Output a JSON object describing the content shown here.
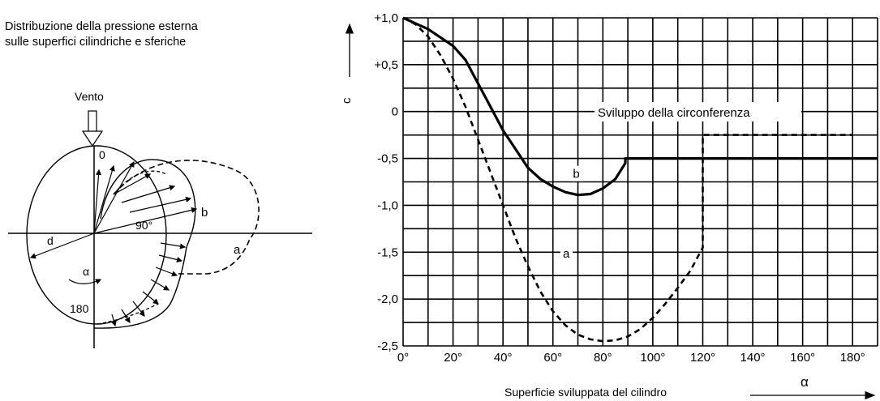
{
  "caption": {
    "line1": "Distribuzione della pressione esterna",
    "line2": "sulle superfici cilindriche e sferiche"
  },
  "diagram": {
    "wind_label": "Vento",
    "label_0": "0",
    "label_90": "90°",
    "label_180": "180",
    "label_d": "d",
    "label_alpha": "α",
    "label_a": "a",
    "label_b": "b"
  },
  "chart_data": {
    "type": "line",
    "ylabel": "c",
    "xlabel": "Superficie sviluppata del cilindro",
    "xlabel_symbol": "α",
    "xlim": [
      0,
      190
    ],
    "ylim": [
      -2.5,
      1.0
    ],
    "x_ticks": [
      0,
      20,
      40,
      60,
      80,
      100,
      120,
      140,
      160,
      180
    ],
    "x_tick_labels": [
      "0°",
      "20°",
      "40°",
      "60°",
      "80°",
      "100°",
      "120°",
      "140°",
      "160°",
      "180°"
    ],
    "y_ticks": [
      1.0,
      0.5,
      0,
      -0.5,
      -1.0,
      -1.5,
      -2.0,
      -2.5
    ],
    "y_tick_labels": [
      "+1,0",
      "+0,5",
      "0",
      "-0,5",
      "-1,0",
      "-1,5",
      "-2,0",
      "-2,5"
    ],
    "grid": true,
    "annotation": "Sviluppo della circonferenza",
    "series": [
      {
        "name": "b",
        "style": "solid",
        "points": [
          [
            0,
            1.0
          ],
          [
            10,
            0.88
          ],
          [
            20,
            0.7
          ],
          [
            25,
            0.55
          ],
          [
            30,
            0.3
          ],
          [
            35,
            0.05
          ],
          [
            40,
            -0.2
          ],
          [
            45,
            -0.4
          ],
          [
            50,
            -0.6
          ],
          [
            55,
            -0.72
          ],
          [
            60,
            -0.8
          ],
          [
            65,
            -0.86
          ],
          [
            70,
            -0.89
          ],
          [
            75,
            -0.88
          ],
          [
            80,
            -0.82
          ],
          [
            85,
            -0.72
          ],
          [
            89,
            -0.55
          ],
          [
            89,
            -0.5
          ],
          [
            190,
            -0.5
          ]
        ]
      },
      {
        "name": "a",
        "style": "dashed",
        "points": [
          [
            0,
            1.0
          ],
          [
            5,
            0.93
          ],
          [
            10,
            0.8
          ],
          [
            15,
            0.6
          ],
          [
            20,
            0.35
          ],
          [
            25,
            0.05
          ],
          [
            30,
            -0.3
          ],
          [
            35,
            -0.65
          ],
          [
            40,
            -1.0
          ],
          [
            45,
            -1.35
          ],
          [
            50,
            -1.65
          ],
          [
            55,
            -1.92
          ],
          [
            60,
            -2.13
          ],
          [
            65,
            -2.28
          ],
          [
            70,
            -2.38
          ],
          [
            75,
            -2.43
          ],
          [
            80,
            -2.45
          ],
          [
            85,
            -2.44
          ],
          [
            90,
            -2.4
          ],
          [
            95,
            -2.32
          ],
          [
            100,
            -2.2
          ],
          [
            105,
            -2.05
          ],
          [
            110,
            -1.88
          ],
          [
            115,
            -1.7
          ],
          [
            118,
            -1.55
          ],
          [
            120,
            -1.45
          ],
          [
            120,
            -0.25
          ],
          [
            180,
            -0.25
          ]
        ]
      }
    ],
    "series_label_positions": {
      "b": [
        68,
        -0.7
      ],
      "a": [
        64,
        -1.55
      ]
    }
  }
}
